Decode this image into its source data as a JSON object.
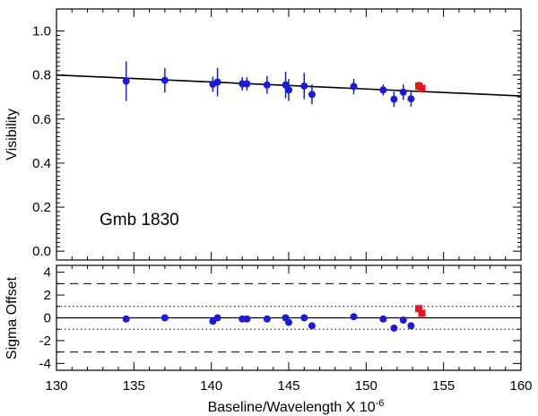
{
  "chart_data": [
    {
      "type": "scatter",
      "panel": "top",
      "annotation": "Gmb 1830",
      "xlabel": "Baseline/Wavelength X 10",
      "xlabel_exponent": "-6",
      "ylabel": "Visibility",
      "xlim": [
        130,
        160
      ],
      "ylim": [
        -0.04,
        1.1
      ],
      "x_ticks": [
        130,
        135,
        140,
        145,
        150,
        155,
        160
      ],
      "y_ticks": [
        0.0,
        0.2,
        0.4,
        0.6,
        0.8,
        1.0
      ],
      "y_tick_labels": [
        "0.0",
        "0.2",
        "0.4",
        "0.6",
        "0.8",
        "1.0"
      ],
      "model_line": {
        "x": [
          130,
          160
        ],
        "y": [
          0.8,
          0.705
        ]
      },
      "series": [
        {
          "name": "blue",
          "color": "#1a1adc",
          "points": [
            {
              "x": 134.5,
              "y": 0.772,
              "err": 0.09
            },
            {
              "x": 137.0,
              "y": 0.776,
              "err": 0.055
            },
            {
              "x": 140.1,
              "y": 0.758,
              "err": 0.035
            },
            {
              "x": 140.4,
              "y": 0.768,
              "err": 0.065
            },
            {
              "x": 142.0,
              "y": 0.76,
              "err": 0.03
            },
            {
              "x": 142.3,
              "y": 0.76,
              "err": 0.03
            },
            {
              "x": 143.6,
              "y": 0.755,
              "err": 0.04
            },
            {
              "x": 144.8,
              "y": 0.755,
              "err": 0.06
            },
            {
              "x": 145.0,
              "y": 0.732,
              "err": 0.05
            },
            {
              "x": 146.0,
              "y": 0.75,
              "err": 0.06
            },
            {
              "x": 146.5,
              "y": 0.712,
              "err": 0.045
            },
            {
              "x": 149.2,
              "y": 0.748,
              "err": 0.035
            },
            {
              "x": 151.1,
              "y": 0.732,
              "err": 0.025
            },
            {
              "x": 151.8,
              "y": 0.69,
              "err": 0.035
            },
            {
              "x": 152.4,
              "y": 0.722,
              "err": 0.035
            },
            {
              "x": 152.9,
              "y": 0.692,
              "err": 0.035
            }
          ]
        },
        {
          "name": "red",
          "color": "#e8141e",
          "points": [
            {
              "x": 153.4,
              "y": 0.75,
              "err": 0.02
            },
            {
              "x": 153.6,
              "y": 0.74,
              "err": 0.02
            }
          ]
        }
      ]
    },
    {
      "type": "scatter",
      "panel": "bottom",
      "ylabel": "Sigma Offset",
      "xlim": [
        130,
        160
      ],
      "ylim": [
        -4.6,
        4.6
      ],
      "x_ticks": [
        130,
        135,
        140,
        145,
        150,
        155,
        160
      ],
      "x_tick_labels": [
        "130",
        "135",
        "140",
        "145",
        "150",
        "155",
        "160"
      ],
      "y_ticks": [
        -4,
        -2,
        0,
        2,
        4
      ],
      "y_tick_labels": [
        "-4",
        "-2",
        "0",
        "2",
        "4"
      ],
      "reference_lines": [
        {
          "y": 0,
          "style": "solid"
        },
        {
          "y": 1,
          "style": "dotted"
        },
        {
          "y": -1,
          "style": "dotted"
        },
        {
          "y": 3,
          "style": "dashed"
        },
        {
          "y": -3,
          "style": "dashed"
        }
      ],
      "series": [
        {
          "name": "blue",
          "color": "#1a1adc",
          "points": [
            {
              "x": 134.5,
              "y": -0.1
            },
            {
              "x": 137.0,
              "y": 0.0
            },
            {
              "x": 140.1,
              "y": -0.3
            },
            {
              "x": 140.4,
              "y": 0.0
            },
            {
              "x": 142.0,
              "y": -0.1
            },
            {
              "x": 142.3,
              "y": -0.1
            },
            {
              "x": 143.6,
              "y": -0.1
            },
            {
              "x": 144.8,
              "y": 0.0
            },
            {
              "x": 145.0,
              "y": -0.4
            },
            {
              "x": 146.0,
              "y": 0.0
            },
            {
              "x": 146.5,
              "y": -0.7
            },
            {
              "x": 149.2,
              "y": 0.1
            },
            {
              "x": 151.1,
              "y": -0.1
            },
            {
              "x": 151.8,
              "y": -0.9
            },
            {
              "x": 152.4,
              "y": -0.2
            },
            {
              "x": 152.9,
              "y": -0.7
            }
          ]
        },
        {
          "name": "red",
          "color": "#e8141e",
          "points": [
            {
              "x": 153.4,
              "y": 0.8
            },
            {
              "x": 153.6,
              "y": 0.4
            }
          ]
        }
      ]
    }
  ]
}
